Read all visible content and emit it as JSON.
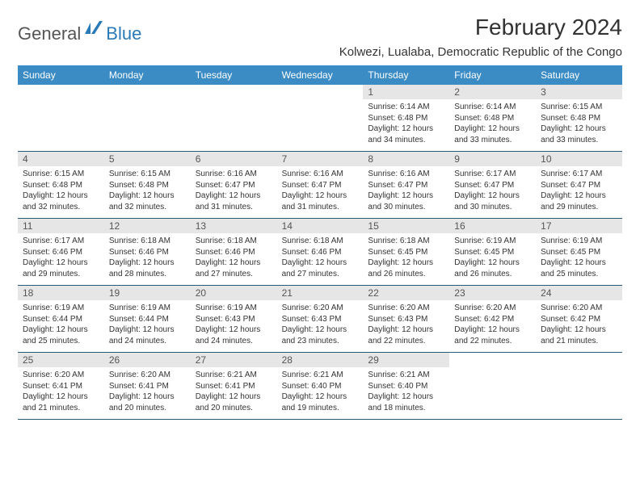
{
  "logo": {
    "text1": "General",
    "text2": "Blue"
  },
  "title": "February 2024",
  "location": "Kolwezi, Lualaba, Democratic Republic of the Congo",
  "colors": {
    "header_bg": "#3b8bc4",
    "daynum_bg": "#e6e6e6",
    "row_divider": "#2a5a7a",
    "logo_blue": "#2a7ab8"
  },
  "weekdays": [
    "Sunday",
    "Monday",
    "Tuesday",
    "Wednesday",
    "Thursday",
    "Friday",
    "Saturday"
  ],
  "weeks": [
    [
      null,
      null,
      null,
      null,
      {
        "n": "1",
        "sr": "Sunrise: 6:14 AM",
        "ss": "Sunset: 6:48 PM",
        "d1": "Daylight: 12 hours",
        "d2": "and 34 minutes."
      },
      {
        "n": "2",
        "sr": "Sunrise: 6:14 AM",
        "ss": "Sunset: 6:48 PM",
        "d1": "Daylight: 12 hours",
        "d2": "and 33 minutes."
      },
      {
        "n": "3",
        "sr": "Sunrise: 6:15 AM",
        "ss": "Sunset: 6:48 PM",
        "d1": "Daylight: 12 hours",
        "d2": "and 33 minutes."
      }
    ],
    [
      {
        "n": "4",
        "sr": "Sunrise: 6:15 AM",
        "ss": "Sunset: 6:48 PM",
        "d1": "Daylight: 12 hours",
        "d2": "and 32 minutes."
      },
      {
        "n": "5",
        "sr": "Sunrise: 6:15 AM",
        "ss": "Sunset: 6:48 PM",
        "d1": "Daylight: 12 hours",
        "d2": "and 32 minutes."
      },
      {
        "n": "6",
        "sr": "Sunrise: 6:16 AM",
        "ss": "Sunset: 6:47 PM",
        "d1": "Daylight: 12 hours",
        "d2": "and 31 minutes."
      },
      {
        "n": "7",
        "sr": "Sunrise: 6:16 AM",
        "ss": "Sunset: 6:47 PM",
        "d1": "Daylight: 12 hours",
        "d2": "and 31 minutes."
      },
      {
        "n": "8",
        "sr": "Sunrise: 6:16 AM",
        "ss": "Sunset: 6:47 PM",
        "d1": "Daylight: 12 hours",
        "d2": "and 30 minutes."
      },
      {
        "n": "9",
        "sr": "Sunrise: 6:17 AM",
        "ss": "Sunset: 6:47 PM",
        "d1": "Daylight: 12 hours",
        "d2": "and 30 minutes."
      },
      {
        "n": "10",
        "sr": "Sunrise: 6:17 AM",
        "ss": "Sunset: 6:47 PM",
        "d1": "Daylight: 12 hours",
        "d2": "and 29 minutes."
      }
    ],
    [
      {
        "n": "11",
        "sr": "Sunrise: 6:17 AM",
        "ss": "Sunset: 6:46 PM",
        "d1": "Daylight: 12 hours",
        "d2": "and 29 minutes."
      },
      {
        "n": "12",
        "sr": "Sunrise: 6:18 AM",
        "ss": "Sunset: 6:46 PM",
        "d1": "Daylight: 12 hours",
        "d2": "and 28 minutes."
      },
      {
        "n": "13",
        "sr": "Sunrise: 6:18 AM",
        "ss": "Sunset: 6:46 PM",
        "d1": "Daylight: 12 hours",
        "d2": "and 27 minutes."
      },
      {
        "n": "14",
        "sr": "Sunrise: 6:18 AM",
        "ss": "Sunset: 6:46 PM",
        "d1": "Daylight: 12 hours",
        "d2": "and 27 minutes."
      },
      {
        "n": "15",
        "sr": "Sunrise: 6:18 AM",
        "ss": "Sunset: 6:45 PM",
        "d1": "Daylight: 12 hours",
        "d2": "and 26 minutes."
      },
      {
        "n": "16",
        "sr": "Sunrise: 6:19 AM",
        "ss": "Sunset: 6:45 PM",
        "d1": "Daylight: 12 hours",
        "d2": "and 26 minutes."
      },
      {
        "n": "17",
        "sr": "Sunrise: 6:19 AM",
        "ss": "Sunset: 6:45 PM",
        "d1": "Daylight: 12 hours",
        "d2": "and 25 minutes."
      }
    ],
    [
      {
        "n": "18",
        "sr": "Sunrise: 6:19 AM",
        "ss": "Sunset: 6:44 PM",
        "d1": "Daylight: 12 hours",
        "d2": "and 25 minutes."
      },
      {
        "n": "19",
        "sr": "Sunrise: 6:19 AM",
        "ss": "Sunset: 6:44 PM",
        "d1": "Daylight: 12 hours",
        "d2": "and 24 minutes."
      },
      {
        "n": "20",
        "sr": "Sunrise: 6:19 AM",
        "ss": "Sunset: 6:43 PM",
        "d1": "Daylight: 12 hours",
        "d2": "and 24 minutes."
      },
      {
        "n": "21",
        "sr": "Sunrise: 6:20 AM",
        "ss": "Sunset: 6:43 PM",
        "d1": "Daylight: 12 hours",
        "d2": "and 23 minutes."
      },
      {
        "n": "22",
        "sr": "Sunrise: 6:20 AM",
        "ss": "Sunset: 6:43 PM",
        "d1": "Daylight: 12 hours",
        "d2": "and 22 minutes."
      },
      {
        "n": "23",
        "sr": "Sunrise: 6:20 AM",
        "ss": "Sunset: 6:42 PM",
        "d1": "Daylight: 12 hours",
        "d2": "and 22 minutes."
      },
      {
        "n": "24",
        "sr": "Sunrise: 6:20 AM",
        "ss": "Sunset: 6:42 PM",
        "d1": "Daylight: 12 hours",
        "d2": "and 21 minutes."
      }
    ],
    [
      {
        "n": "25",
        "sr": "Sunrise: 6:20 AM",
        "ss": "Sunset: 6:41 PM",
        "d1": "Daylight: 12 hours",
        "d2": "and 21 minutes."
      },
      {
        "n": "26",
        "sr": "Sunrise: 6:20 AM",
        "ss": "Sunset: 6:41 PM",
        "d1": "Daylight: 12 hours",
        "d2": "and 20 minutes."
      },
      {
        "n": "27",
        "sr": "Sunrise: 6:21 AM",
        "ss": "Sunset: 6:41 PM",
        "d1": "Daylight: 12 hours",
        "d2": "and 20 minutes."
      },
      {
        "n": "28",
        "sr": "Sunrise: 6:21 AM",
        "ss": "Sunset: 6:40 PM",
        "d1": "Daylight: 12 hours",
        "d2": "and 19 minutes."
      },
      {
        "n": "29",
        "sr": "Sunrise: 6:21 AM",
        "ss": "Sunset: 6:40 PM",
        "d1": "Daylight: 12 hours",
        "d2": "and 18 minutes."
      },
      null,
      null
    ]
  ]
}
